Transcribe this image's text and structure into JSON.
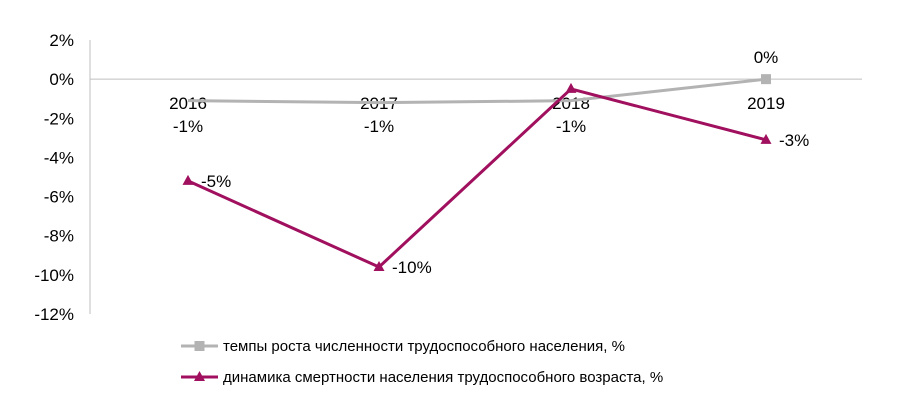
{
  "chart_data": {
    "type": "line",
    "categories": [
      "2016",
      "2017",
      "2018",
      "2019"
    ],
    "ylim": [
      -12,
      2
    ],
    "yticks": [
      2,
      0,
      -2,
      -4,
      -6,
      -8,
      -10,
      -12
    ],
    "ytick_labels": [
      "2%",
      "0%",
      "-2%",
      "-4%",
      "-6%",
      "-8%",
      "-10%",
      "-12%"
    ],
    "grid": false,
    "legend_position": "bottom",
    "series": [
      {
        "name": "темпы роста численности трудоспособного населения, %",
        "values": [
          -1.1,
          -1.2,
          -1.1,
          0
        ],
        "labels": [
          "-1%",
          "-1%",
          "-1%",
          "0%"
        ],
        "color": "#b3b3b3",
        "marker": "square"
      },
      {
        "name": "динамика смертности населения трудоспособного возраста, %",
        "values": [
          -5.2,
          -9.6,
          -0.5,
          -3.1
        ],
        "labels": [
          "-5%",
          "-10%",
          "",
          "-3%"
        ],
        "color": "#a0105e",
        "marker": "triangle"
      }
    ]
  }
}
